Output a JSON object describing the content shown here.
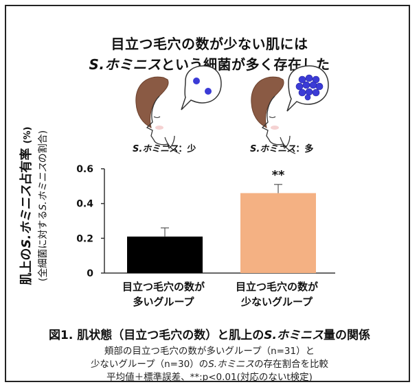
{
  "title": {
    "line1": "目立つ毛穴の数が少ない肌には",
    "line2_species": "S.ホミニス",
    "line2_rest": "という細菌が多く存在した"
  },
  "faces": [
    {
      "species": "S.ホミニス",
      "sep": "：",
      "amount": "少"
    },
    {
      "species": "S.ホミニス",
      "sep": "：",
      "amount": "多"
    }
  ],
  "y_axis": {
    "main_prefix": "肌上の",
    "main_species": "S.ホミニス",
    "main_suffix": "占有率",
    "unit": "(%)",
    "sub_prefix": "(全細菌に対する",
    "sub_species": "S.ホミニス",
    "sub_suffix": "の割合)"
  },
  "categories": [
    {
      "line1": "目立つ毛穴の数が",
      "line2": "多いグループ"
    },
    {
      "line1": "目立つ毛穴の数が",
      "line2": "少ないグループ"
    }
  ],
  "caption": {
    "prefix": "図1. 肌状態（目立つ毛穴の数）と肌上の",
    "species": "S.ホミニス",
    "suffix": "量の関係"
  },
  "notes": {
    "line1": "頬部の目立つ毛穴の数が多いグループ（n=31）と",
    "line2_prefix": "少ないグループ（n=30）の",
    "line2_species": "S.ホミニス",
    "line2_suffix": "の存在割合を比較",
    "line3": "平均値＋標準誤差、**:p<0.01(対応のないt検定)"
  },
  "chart_data": {
    "type": "bar",
    "categories": [
      "目立つ毛穴の数が多いグループ",
      "目立つ毛穴の数が少ないグループ"
    ],
    "values": [
      0.21,
      0.46
    ],
    "errors": [
      0.05,
      0.05
    ],
    "colors": [
      "#000000",
      "#f4b183"
    ],
    "ylim": [
      0,
      0.6
    ],
    "ticks": [
      "0",
      "0.2",
      "0.4",
      "0.6"
    ],
    "tick_values": [
      0,
      0.2,
      0.4,
      0.6
    ],
    "significance": [
      "",
      "**"
    ]
  }
}
